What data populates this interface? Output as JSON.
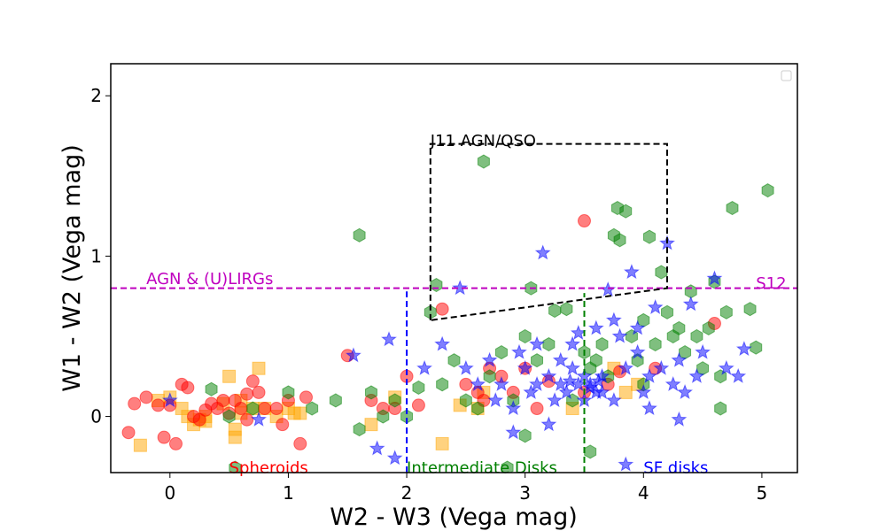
{
  "chart_data": {
    "type": "scatter",
    "xlabel": "W2 - W3 (Vega mag)",
    "ylabel": "W1 - W2 (Vega mag)",
    "xlim": [
      -0.5,
      5.3
    ],
    "ylim": [
      -0.35,
      2.2
    ],
    "x_ticks": [
      0,
      1,
      2,
      3,
      4,
      5
    ],
    "y_ticks": [
      0,
      1,
      2
    ],
    "x_tick_labels": [
      "0",
      "1",
      "2",
      "3",
      "4",
      "5"
    ],
    "y_tick_labels": [
      "0",
      "1",
      "2"
    ],
    "grid": false,
    "legend_box": "top-right (empty)",
    "series": [
      {
        "marker": "square",
        "color": "#ffa500",
        "points": [
          [
            -0.1,
            0.1
          ],
          [
            0.0,
            0.12
          ],
          [
            0.1,
            0.05
          ],
          [
            0.15,
            0.0
          ],
          [
            0.2,
            -0.05
          ],
          [
            0.25,
            -0.02
          ],
          [
            0.3,
            -0.03
          ],
          [
            0.45,
            0.08
          ],
          [
            0.5,
            0.25
          ],
          [
            0.55,
            -0.08
          ],
          [
            0.6,
            0.1
          ],
          [
            0.6,
            0.02
          ],
          [
            0.75,
            0.3
          ],
          [
            0.8,
            0.05
          ],
          [
            0.9,
            0.0
          ],
          [
            1.0,
            0.05
          ],
          [
            1.05,
            0.02
          ],
          [
            1.1,
            0.02
          ],
          [
            -0.25,
            -0.18
          ],
          [
            0.55,
            -0.13
          ],
          [
            1.7,
            -0.05
          ],
          [
            1.9,
            0.12
          ],
          [
            2.3,
            -0.17
          ],
          [
            2.45,
            0.07
          ],
          [
            2.6,
            0.05
          ],
          [
            2.65,
            0.15
          ],
          [
            3.4,
            0.05
          ],
          [
            3.75,
            0.3
          ],
          [
            3.95,
            0.2
          ],
          [
            3.85,
            0.15
          ],
          [
            0.3,
            0.0
          ],
          [
            0.7,
            0.05
          ]
        ]
      },
      {
        "marker": "circle",
        "color": "#ff0000",
        "points": [
          [
            -0.35,
            -0.1
          ],
          [
            -0.3,
            0.08
          ],
          [
            -0.2,
            0.12
          ],
          [
            -0.1,
            0.07
          ],
          [
            -0.05,
            -0.13
          ],
          [
            0.0,
            0.07
          ],
          [
            0.05,
            -0.17
          ],
          [
            0.1,
            0.2
          ],
          [
            0.15,
            0.18
          ],
          [
            0.2,
            0.0
          ],
          [
            0.25,
            -0.02
          ],
          [
            0.3,
            0.04
          ],
          [
            0.4,
            0.05
          ],
          [
            0.45,
            0.1
          ],
          [
            0.5,
            0.02
          ],
          [
            0.55,
            0.1
          ],
          [
            0.6,
            0.05
          ],
          [
            0.65,
            0.14
          ],
          [
            0.7,
            0.22
          ],
          [
            0.75,
            0.15
          ],
          [
            0.8,
            0.05
          ],
          [
            0.9,
            0.05
          ],
          [
            0.95,
            -0.05
          ],
          [
            1.0,
            0.1
          ],
          [
            1.1,
            -0.17
          ],
          [
            1.15,
            0.12
          ],
          [
            1.5,
            0.38
          ],
          [
            1.7,
            0.1
          ],
          [
            1.8,
            0.05
          ],
          [
            1.9,
            0.05
          ],
          [
            2.0,
            0.25
          ],
          [
            2.1,
            0.07
          ],
          [
            2.3,
            0.67
          ],
          [
            2.5,
            0.2
          ],
          [
            2.6,
            0.15
          ],
          [
            2.7,
            0.3
          ],
          [
            2.8,
            0.25
          ],
          [
            2.9,
            0.15
          ],
          [
            3.0,
            0.3
          ],
          [
            3.1,
            0.05
          ],
          [
            3.2,
            0.22
          ],
          [
            3.5,
            0.15
          ],
          [
            3.7,
            0.2
          ],
          [
            3.8,
            0.28
          ],
          [
            4.1,
            0.3
          ],
          [
            4.6,
            0.58
          ],
          [
            2.65,
            0.1
          ],
          [
            3.5,
            1.22
          ],
          [
            0.65,
            -0.02
          ],
          [
            0.35,
            0.08
          ]
        ]
      },
      {
        "marker": "hexagon",
        "color": "#008000",
        "points": [
          [
            0.35,
            0.17
          ],
          [
            0.5,
            0.0
          ],
          [
            0.7,
            0.05
          ],
          [
            1.0,
            0.15
          ],
          [
            1.2,
            0.05
          ],
          [
            1.4,
            0.1
          ],
          [
            1.6,
            1.13
          ],
          [
            1.6,
            -0.08
          ],
          [
            1.7,
            0.15
          ],
          [
            1.8,
            0.0
          ],
          [
            1.9,
            0.1
          ],
          [
            2.0,
            0.0
          ],
          [
            2.1,
            0.18
          ],
          [
            2.2,
            0.65
          ],
          [
            2.25,
            0.82
          ],
          [
            2.3,
            0.2
          ],
          [
            2.4,
            0.35
          ],
          [
            2.5,
            0.1
          ],
          [
            2.6,
            0.05
          ],
          [
            2.65,
            1.59
          ],
          [
            2.7,
            0.25
          ],
          [
            2.8,
            0.4
          ],
          [
            2.9,
            0.1
          ],
          [
            3.0,
            0.5
          ],
          [
            3.05,
            0.8
          ],
          [
            3.1,
            0.35
          ],
          [
            3.2,
            0.45
          ],
          [
            3.25,
            0.66
          ],
          [
            3.35,
            0.67
          ],
          [
            3.4,
            0.1
          ],
          [
            3.5,
            0.4
          ],
          [
            3.55,
            0.3
          ],
          [
            3.6,
            0.35
          ],
          [
            3.65,
            0.45
          ],
          [
            3.7,
            0.25
          ],
          [
            3.75,
            1.13
          ],
          [
            3.78,
            1.3
          ],
          [
            3.8,
            1.1
          ],
          [
            3.85,
            1.28
          ],
          [
            3.9,
            0.5
          ],
          [
            3.95,
            0.35
          ],
          [
            4.0,
            0.2
          ],
          [
            4.05,
            1.12
          ],
          [
            4.1,
            0.45
          ],
          [
            4.15,
            0.9
          ],
          [
            4.2,
            0.65
          ],
          [
            4.25,
            0.5
          ],
          [
            4.3,
            0.55
          ],
          [
            4.35,
            0.4
          ],
          [
            4.4,
            0.78
          ],
          [
            4.45,
            0.5
          ],
          [
            4.5,
            0.3
          ],
          [
            4.55,
            0.55
          ],
          [
            4.6,
            0.84
          ],
          [
            4.65,
            0.25
          ],
          [
            4.7,
            0.65
          ],
          [
            4.75,
            1.3
          ],
          [
            4.9,
            0.67
          ],
          [
            4.95,
            0.43
          ],
          [
            5.05,
            1.41
          ],
          [
            4.65,
            0.05
          ],
          [
            3.55,
            -0.22
          ],
          [
            2.85,
            -0.32
          ],
          [
            3.0,
            -0.12
          ],
          [
            0.55,
            -0.32
          ],
          [
            4.0,
            0.6
          ]
        ]
      },
      {
        "marker": "star",
        "color": "#0000ff",
        "points": [
          [
            0.0,
            0.1
          ],
          [
            0.75,
            -0.02
          ],
          [
            1.55,
            0.38
          ],
          [
            1.75,
            -0.2
          ],
          [
            1.85,
            0.48
          ],
          [
            1.9,
            -0.26
          ],
          [
            2.15,
            0.3
          ],
          [
            2.3,
            0.45
          ],
          [
            2.45,
            0.8
          ],
          [
            2.5,
            0.3
          ],
          [
            2.6,
            0.2
          ],
          [
            2.7,
            0.35
          ],
          [
            2.75,
            0.1
          ],
          [
            2.8,
            0.2
          ],
          [
            2.9,
            0.05
          ],
          [
            3.0,
            0.3
          ],
          [
            3.05,
            0.15
          ],
          [
            3.1,
            0.2
          ],
          [
            3.15,
            1.02
          ],
          [
            3.2,
            0.25
          ],
          [
            3.25,
            0.1
          ],
          [
            3.3,
            0.2
          ],
          [
            3.35,
            0.15
          ],
          [
            3.4,
            0.3
          ],
          [
            3.45,
            0.52
          ],
          [
            3.5,
            0.1
          ],
          [
            3.55,
            0.2
          ],
          [
            3.6,
            0.15
          ],
          [
            3.65,
            0.25
          ],
          [
            3.7,
            0.79
          ],
          [
            3.75,
            0.1
          ],
          [
            3.8,
            0.5
          ],
          [
            3.85,
            0.3
          ],
          [
            3.9,
            0.9
          ],
          [
            3.95,
            0.4
          ],
          [
            4.0,
            0.15
          ],
          [
            4.05,
            0.25
          ],
          [
            4.1,
            0.68
          ],
          [
            4.15,
            0.3
          ],
          [
            4.2,
            1.08
          ],
          [
            4.25,
            0.2
          ],
          [
            4.3,
            0.35
          ],
          [
            4.35,
            0.15
          ],
          [
            4.4,
            0.7
          ],
          [
            4.45,
            0.25
          ],
          [
            4.5,
            0.4
          ],
          [
            4.6,
            0.86
          ],
          [
            4.7,
            0.3
          ],
          [
            4.8,
            0.25
          ],
          [
            4.85,
            0.42
          ],
          [
            3.85,
            -0.3
          ],
          [
            3.2,
            -0.05
          ],
          [
            2.9,
            -0.1
          ],
          [
            3.4,
            0.45
          ],
          [
            3.6,
            0.55
          ],
          [
            3.3,
            0.35
          ],
          [
            3.1,
            0.45
          ],
          [
            2.95,
            0.4
          ],
          [
            3.75,
            0.6
          ],
          [
            4.05,
            0.05
          ],
          [
            4.3,
            -0.02
          ],
          [
            3.95,
            0.55
          ],
          [
            3.65,
            0.15
          ],
          [
            3.5,
            0.25
          ],
          [
            3.45,
            0.2
          ],
          [
            3.55,
            0.18
          ],
          [
            3.38,
            0.22
          ],
          [
            3.62,
            0.22
          ]
        ]
      }
    ],
    "lines": [
      {
        "name": "S12 cut",
        "style": "dashed",
        "color": "#bf00bf",
        "points": [
          [
            -0.5,
            0.8
          ],
          [
            5.3,
            0.8
          ]
        ]
      },
      {
        "name": "J11 AGN/QSO box",
        "style": "dashed",
        "color": "#000000",
        "points": [
          [
            2.2,
            0.6
          ],
          [
            2.2,
            1.7
          ],
          [
            4.2,
            1.7
          ],
          [
            4.2,
            0.8
          ],
          [
            2.2,
            0.6
          ]
        ]
      },
      {
        "name": "Spheroid / Intermediate divide",
        "style": "dashed",
        "color": "#0000ff",
        "points": [
          [
            2.0,
            -0.35
          ],
          [
            2.0,
            0.78
          ]
        ]
      },
      {
        "name": "Intermediate / SF divide",
        "style": "dashed",
        "color": "#008000",
        "points": [
          [
            3.5,
            -0.35
          ],
          [
            3.5,
            0.77
          ]
        ]
      }
    ],
    "annotations": [
      {
        "text": "J11 AGN/QSO",
        "color": "#000000",
        "x": 2.2,
        "y": 1.72
      },
      {
        "text": "AGN & (U)LIRGs",
        "color": "#bf00bf",
        "x": -0.2,
        "y": 0.86
      },
      {
        "text": "S12",
        "color": "#bf00bf",
        "x": 4.95,
        "y": 0.83
      },
      {
        "text": "Spheroids",
        "color": "#ff0000",
        "x": 0.5,
        "y": -0.32
      },
      {
        "text": "Intermediate Disks",
        "color": "#008000",
        "x": 2.0,
        "y": -0.32
      },
      {
        "text": "SF disks",
        "color": "#0000ff",
        "x": 4.0,
        "y": -0.32
      }
    ]
  }
}
